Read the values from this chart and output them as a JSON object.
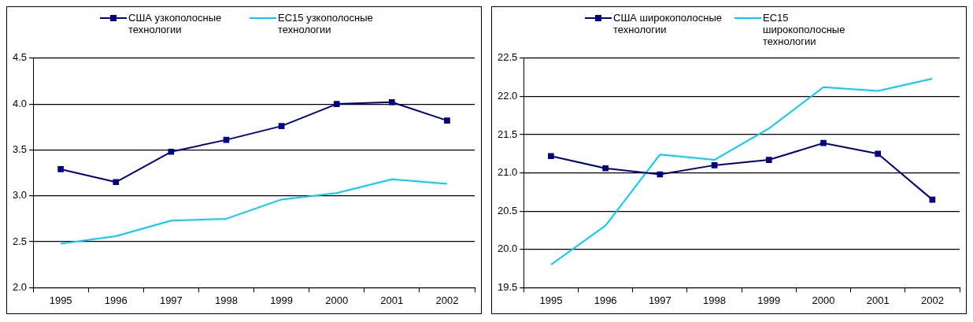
{
  "chart_data": [
    {
      "type": "line",
      "categories": [
        "1995",
        "1996",
        "1997",
        "1998",
        "1999",
        "2000",
        "2001",
        "2002"
      ],
      "series": [
        {
          "name": "США узкополосные технологии",
          "color": "#000080",
          "marker": "square",
          "values": [
            3.29,
            3.15,
            3.48,
            3.61,
            3.76,
            4.0,
            4.02,
            3.82
          ]
        },
        {
          "name": "ЕС15 узкополосные технологии",
          "color": "#00ccff",
          "marker": "none",
          "values": [
            2.48,
            2.56,
            2.73,
            2.75,
            2.96,
            3.03,
            3.18,
            3.13
          ]
        }
      ],
      "ylim": [
        2.0,
        4.5
      ],
      "yticks": [
        {
          "value": 2.0,
          "label": "2.0"
        },
        {
          "value": 2.5,
          "label": "2.5"
        },
        {
          "value": 3.0,
          "label": "3.0"
        },
        {
          "value": 3.5,
          "label": "3.5"
        },
        {
          "value": 4.0,
          "label": "4.0"
        },
        {
          "value": 4.5,
          "label": "4.5"
        }
      ],
      "grid": "y",
      "legend": "top"
    },
    {
      "type": "line",
      "categories": [
        "1995",
        "1996",
        "1997",
        "1998",
        "1999",
        "2000",
        "2001",
        "2002"
      ],
      "series": [
        {
          "name": "США широкополосные технологии",
          "color": "#000080",
          "marker": "square",
          "values": [
            21.22,
            21.06,
            20.98,
            21.1,
            21.17,
            21.39,
            21.25,
            20.65
          ]
        },
        {
          "name": "ЕС15 широкополосные технологии",
          "color": "#00ccff",
          "marker": "none",
          "values": [
            19.8,
            20.31,
            21.24,
            21.17,
            21.58,
            22.12,
            22.07,
            22.23
          ]
        }
      ],
      "ylim": [
        19.5,
        22.5
      ],
      "yticks": [
        {
          "value": 19.5,
          "label": "19.5"
        },
        {
          "value": 20.0,
          "label": "20.0"
        },
        {
          "value": 20.5,
          "label": "20.5"
        },
        {
          "value": 21.0,
          "label": "21.0"
        },
        {
          "value": 21.5,
          "label": "21.5"
        },
        {
          "value": 22.0,
          "label": "22.0"
        },
        {
          "value": 22.5,
          "label": "22.5"
        }
      ],
      "grid": "y",
      "legend": "top"
    }
  ]
}
